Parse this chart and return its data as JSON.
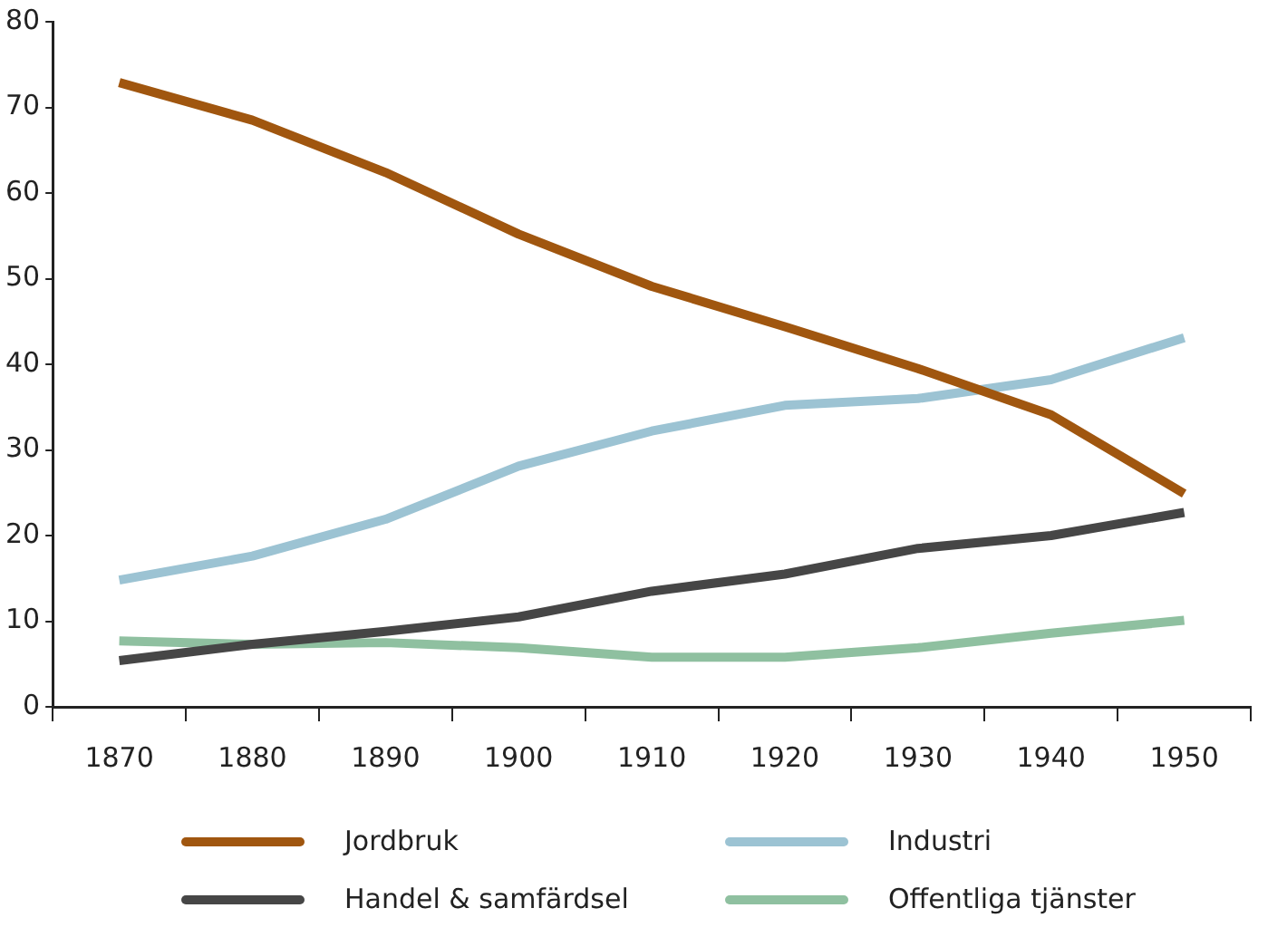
{
  "chart_data": {
    "type": "line",
    "categories": [
      "1870",
      "1880",
      "1890",
      "1900",
      "1910",
      "1920",
      "1930",
      "1940",
      "1950"
    ],
    "series": [
      {
        "name": "Jordbruk",
        "color": "#a0560f",
        "values": [
          72.9,
          68.5,
          62.4,
          55.2,
          49.1,
          44.4,
          39.5,
          34.1,
          24.9
        ]
      },
      {
        "name": "Industri",
        "color": "#9cc3d3",
        "values": [
          14.8,
          17.6,
          21.9,
          28.1,
          32.2,
          35.2,
          36,
          38.2,
          43.1
        ]
      },
      {
        "name": "Handel & samfärdsel",
        "color": "#464646",
        "values": [
          5.4,
          7.3,
          8.8,
          10.5,
          13.5,
          15.5,
          18.5,
          20,
          22.7
        ]
      },
      {
        "name": "Offentliga tjänster",
        "color": "#8fc0a0",
        "values": [
          7.7,
          7.3,
          7.5,
          6.9,
          5.8,
          5.8,
          6.9,
          8.6,
          10.1
        ]
      }
    ],
    "ylim": [
      0,
      80
    ],
    "yticks": [
      0,
      10,
      20,
      30,
      40,
      50,
      60,
      70,
      80
    ],
    "grid": false,
    "legend": "bottom",
    "marker": "none",
    "line_style": "solid"
  }
}
